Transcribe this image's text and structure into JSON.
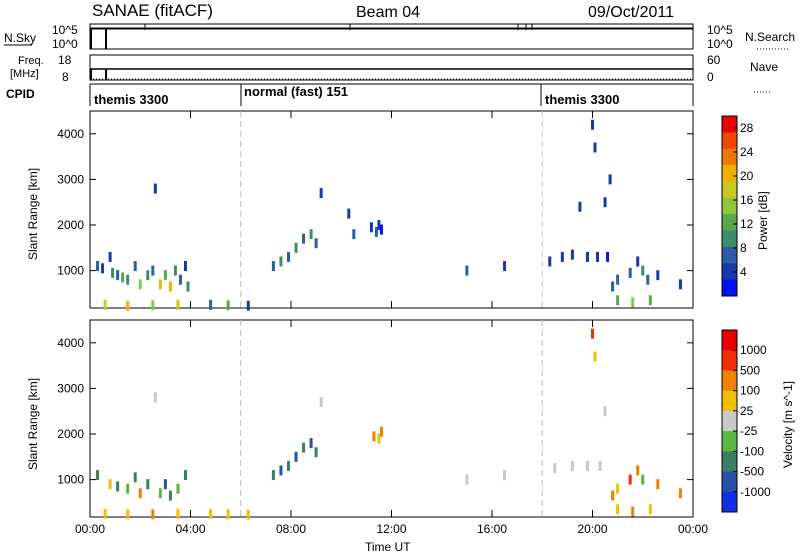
{
  "header": {
    "title": "SANAE (fitACF)",
    "beam": "Beam 04",
    "date": "09/Oct/2011"
  },
  "strips": {
    "nsky_label": "N.Sky",
    "nsky_ticks": [
      "10^5",
      "10^0"
    ],
    "nsearch_label": "N.Search",
    "freq_label_1": "Freq.",
    "freq_label_2": "[MHz]",
    "freq_ticks": [
      "18",
      "8"
    ],
    "nave_label": "Nave",
    "nave_ticks": [
      "60",
      "0"
    ],
    "cpid_label": "CPID",
    "cpid_segments": [
      {
        "label": "themis 3300",
        "start": 0,
        "end": 6
      },
      {
        "label": "normal (fast) 151",
        "start": 6,
        "end": 18
      },
      {
        "label": "themis 3300",
        "start": 18,
        "end": 24
      }
    ]
  },
  "chart_data": [
    {
      "type": "heatmap",
      "name": "power",
      "ylabel": "Slant Range [km]",
      "xlabel": "Time UT",
      "xlim": [
        0,
        24
      ],
      "ylim": [
        180,
        4500
      ],
      "xticks": [
        "00:00",
        "04:00",
        "08:00",
        "12:00",
        "16:00",
        "20:00",
        "00:00"
      ],
      "yticks": [
        1000,
        2000,
        3000,
        4000
      ],
      "colorbar": {
        "label": "Power [dB]",
        "ticks": [
          "4",
          "8",
          "12",
          "16",
          "20",
          "24",
          "28"
        ],
        "colors": [
          "#0010ff",
          "#1838a8",
          "#2e5ca8",
          "#3a8e6a",
          "#5aa64a",
          "#8cc83a",
          "#c8c81e",
          "#f0b000",
          "#f07800",
          "#f04800",
          "#f00000"
        ]
      },
      "points": [
        {
          "t": 0.3,
          "r": 1100,
          "c": 2
        },
        {
          "t": 0.5,
          "r": 1050,
          "c": 1
        },
        {
          "t": 0.8,
          "r": 1300,
          "c": 1
        },
        {
          "t": 0.9,
          "r": 950,
          "c": 3
        },
        {
          "t": 1.1,
          "r": 900,
          "c": 2
        },
        {
          "t": 1.3,
          "r": 850,
          "c": 4
        },
        {
          "t": 1.5,
          "r": 800,
          "c": 3
        },
        {
          "t": 1.8,
          "r": 1100,
          "c": 2
        },
        {
          "t": 2.0,
          "r": 700,
          "c": 5
        },
        {
          "t": 2.3,
          "r": 900,
          "c": 3
        },
        {
          "t": 2.5,
          "r": 1000,
          "c": 2
        },
        {
          "t": 2.6,
          "r": 2800,
          "c": 1
        },
        {
          "t": 2.8,
          "r": 700,
          "c": 6
        },
        {
          "t": 3.0,
          "r": 900,
          "c": 4
        },
        {
          "t": 3.2,
          "r": 650,
          "c": 7
        },
        {
          "t": 3.4,
          "r": 1000,
          "c": 3
        },
        {
          "t": 3.6,
          "r": 800,
          "c": 2
        },
        {
          "t": 3.8,
          "r": 1100,
          "c": 1
        },
        {
          "t": 3.9,
          "r": 650,
          "c": 3
        },
        {
          "t": 0.6,
          "r": 250,
          "c": 6
        },
        {
          "t": 1.5,
          "r": 230,
          "c": 7
        },
        {
          "t": 2.5,
          "r": 240,
          "c": 5
        },
        {
          "t": 3.5,
          "r": 250,
          "c": 6
        },
        {
          "t": 4.8,
          "r": 250,
          "c": 2
        },
        {
          "t": 5.5,
          "r": 240,
          "c": 4
        },
        {
          "t": 6.3,
          "r": 230,
          "c": 1
        },
        {
          "t": 7.3,
          "r": 1100,
          "c": 2
        },
        {
          "t": 7.6,
          "r": 1200,
          "c": 3
        },
        {
          "t": 7.9,
          "r": 1300,
          "c": 2
        },
        {
          "t": 8.2,
          "r": 1500,
          "c": 3
        },
        {
          "t": 8.5,
          "r": 1700,
          "c": 2
        },
        {
          "t": 8.8,
          "r": 1800,
          "c": 3
        },
        {
          "t": 9.0,
          "r": 1600,
          "c": 2
        },
        {
          "t": 9.2,
          "r": 2700,
          "c": 1
        },
        {
          "t": 10.3,
          "r": 2250,
          "c": 1
        },
        {
          "t": 10.5,
          "r": 1800,
          "c": 2
        },
        {
          "t": 11.2,
          "r": 1950,
          "c": 1
        },
        {
          "t": 11.4,
          "r": 1850,
          "c": 2
        },
        {
          "t": 11.5,
          "r": 2000,
          "c": 1
        },
        {
          "t": 11.6,
          "r": 1900,
          "c": 0
        },
        {
          "t": 15.0,
          "r": 1000,
          "c": 2
        },
        {
          "t": 16.5,
          "r": 1100,
          "c": 1
        },
        {
          "t": 18.3,
          "r": 1200,
          "c": 1
        },
        {
          "t": 18.8,
          "r": 1300,
          "c": 1
        },
        {
          "t": 19.2,
          "r": 1350,
          "c": 1
        },
        {
          "t": 19.5,
          "r": 2400,
          "c": 1
        },
        {
          "t": 19.8,
          "r": 1300,
          "c": 1
        },
        {
          "t": 20.0,
          "r": 4200,
          "c": 1
        },
        {
          "t": 20.1,
          "r": 3700,
          "c": 1
        },
        {
          "t": 20.2,
          "r": 1300,
          "c": 1
        },
        {
          "t": 20.5,
          "r": 2500,
          "c": 1
        },
        {
          "t": 20.6,
          "r": 1300,
          "c": 0
        },
        {
          "t": 20.7,
          "r": 3000,
          "c": 1
        },
        {
          "t": 20.8,
          "r": 650,
          "c": 2
        },
        {
          "t": 21.0,
          "r": 800,
          "c": 2
        },
        {
          "t": 21.5,
          "r": 950,
          "c": 2
        },
        {
          "t": 21.8,
          "r": 1200,
          "c": 1
        },
        {
          "t": 22.0,
          "r": 1000,
          "c": 3
        },
        {
          "t": 22.2,
          "r": 800,
          "c": 2
        },
        {
          "t": 22.6,
          "r": 900,
          "c": 1
        },
        {
          "t": 23.5,
          "r": 700,
          "c": 1
        },
        {
          "t": 21.0,
          "r": 350,
          "c": 4
        },
        {
          "t": 21.6,
          "r": 300,
          "c": 5
        },
        {
          "t": 22.3,
          "r": 350,
          "c": 4
        }
      ]
    },
    {
      "type": "heatmap",
      "name": "velocity",
      "ylabel": "Slant Range [km]",
      "xlabel": "Time UT",
      "xlim": [
        0,
        24
      ],
      "ylim": [
        180,
        4500
      ],
      "xticks": [
        "00:00",
        "04:00",
        "08:00",
        "12:00",
        "16:00",
        "20:00",
        "00:00"
      ],
      "yticks": [
        1000,
        2000,
        3000,
        4000
      ],
      "colorbar": {
        "label": "Velocity [m s^-1]",
        "ticks": [
          "1000",
          "500",
          "100",
          "25",
          "-25",
          "-100",
          "-500",
          "-1000"
        ],
        "colors": [
          "#1030e8",
          "#2850a8",
          "#3a8060",
          "#5ab840",
          "#c8c8c8",
          "#f0c000",
          "#f08000",
          "#f03000",
          "#e80000"
        ]
      },
      "points": [
        {
          "t": 0.3,
          "r": 1100,
          "c": 2
        },
        {
          "t": 0.8,
          "r": 900,
          "c": 5
        },
        {
          "t": 1.1,
          "r": 850,
          "c": 2
        },
        {
          "t": 1.5,
          "r": 800,
          "c": 3
        },
        {
          "t": 1.8,
          "r": 1050,
          "c": 2
        },
        {
          "t": 2.0,
          "r": 700,
          "c": 6
        },
        {
          "t": 2.3,
          "r": 900,
          "c": 2
        },
        {
          "t": 2.6,
          "r": 2800,
          "c": 4
        },
        {
          "t": 2.8,
          "r": 700,
          "c": 3
        },
        {
          "t": 3.0,
          "r": 900,
          "c": 1
        },
        {
          "t": 3.2,
          "r": 650,
          "c": 2
        },
        {
          "t": 3.5,
          "r": 800,
          "c": 3
        },
        {
          "t": 3.8,
          "r": 1100,
          "c": 2
        },
        {
          "t": 0.6,
          "r": 250,
          "c": 5
        },
        {
          "t": 1.5,
          "r": 240,
          "c": 5
        },
        {
          "t": 2.5,
          "r": 240,
          "c": 6
        },
        {
          "t": 3.5,
          "r": 250,
          "c": 5
        },
        {
          "t": 4.8,
          "r": 250,
          "c": 5
        },
        {
          "t": 5.5,
          "r": 240,
          "c": 5
        },
        {
          "t": 6.3,
          "r": 230,
          "c": 5
        },
        {
          "t": 7.3,
          "r": 1100,
          "c": 2
        },
        {
          "t": 7.6,
          "r": 1200,
          "c": 1
        },
        {
          "t": 7.9,
          "r": 1300,
          "c": 2
        },
        {
          "t": 8.2,
          "r": 1500,
          "c": 1
        },
        {
          "t": 8.5,
          "r": 1700,
          "c": 2
        },
        {
          "t": 8.8,
          "r": 1800,
          "c": 1
        },
        {
          "t": 9.0,
          "r": 1600,
          "c": 2
        },
        {
          "t": 9.2,
          "r": 2700,
          "c": 4
        },
        {
          "t": 11.3,
          "r": 1950,
          "c": 6
        },
        {
          "t": 11.5,
          "r": 1900,
          "c": 5
        },
        {
          "t": 11.6,
          "r": 2050,
          "c": 6
        },
        {
          "t": 15.0,
          "r": 1000,
          "c": 4
        },
        {
          "t": 16.5,
          "r": 1100,
          "c": 4
        },
        {
          "t": 18.5,
          "r": 1250,
          "c": 4
        },
        {
          "t": 19.2,
          "r": 1300,
          "c": 4
        },
        {
          "t": 19.8,
          "r": 1300,
          "c": 4
        },
        {
          "t": 20.0,
          "r": 4200,
          "c": 7
        },
        {
          "t": 20.1,
          "r": 3700,
          "c": 5
        },
        {
          "t": 20.3,
          "r": 1300,
          "c": 4
        },
        {
          "t": 20.5,
          "r": 2500,
          "c": 4
        },
        {
          "t": 20.8,
          "r": 650,
          "c": 6
        },
        {
          "t": 21.0,
          "r": 800,
          "c": 5
        },
        {
          "t": 21.5,
          "r": 1000,
          "c": 7
        },
        {
          "t": 21.8,
          "r": 1200,
          "c": 6
        },
        {
          "t": 22.0,
          "r": 1000,
          "c": 3
        },
        {
          "t": 22.6,
          "r": 900,
          "c": 6
        },
        {
          "t": 23.5,
          "r": 700,
          "c": 6
        },
        {
          "t": 21.0,
          "r": 350,
          "c": 5
        },
        {
          "t": 21.6,
          "r": 300,
          "c": 6
        },
        {
          "t": 22.3,
          "r": 350,
          "c": 5
        }
      ]
    }
  ]
}
